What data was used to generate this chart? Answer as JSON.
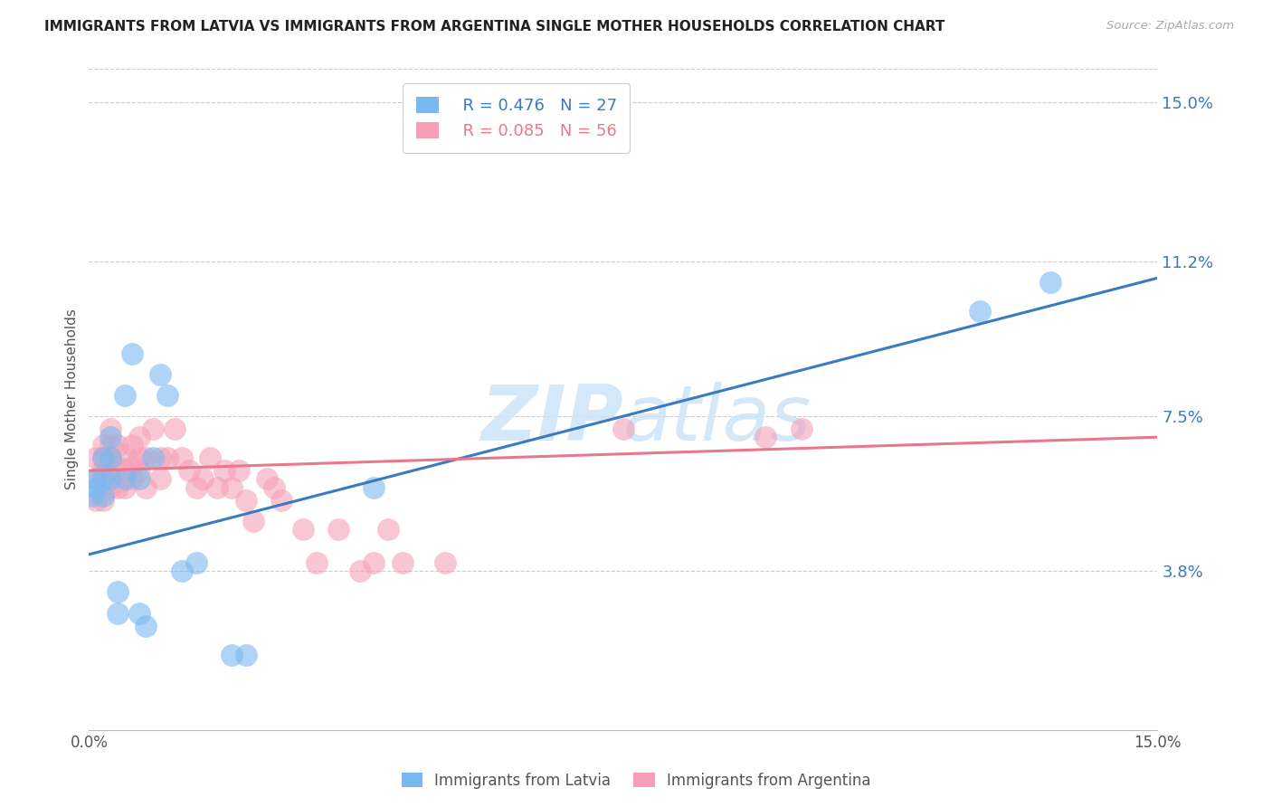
{
  "title": "IMMIGRANTS FROM LATVIA VS IMMIGRANTS FROM ARGENTINA SINGLE MOTHER HOUSEHOLDS CORRELATION CHART",
  "source": "Source: ZipAtlas.com",
  "ylabel": "Single Mother Households",
  "ytick_labels": [
    "15.0%",
    "11.2%",
    "7.5%",
    "3.8%"
  ],
  "ytick_values": [
    0.15,
    0.112,
    0.075,
    0.038
  ],
  "xmin": 0.0,
  "xmax": 0.15,
  "ymin": 0.0,
  "ymax": 0.158,
  "legend1_r": "0.476",
  "legend1_n": "27",
  "legend2_r": "0.085",
  "legend2_n": "56",
  "blue_color": "#7ab8f0",
  "pink_color": "#f5a0b8",
  "line_blue": "#3a7abf",
  "line_pink": "#e8788a",
  "watermark_color": "#cce4f7",
  "latvia_x": [
    0.0005,
    0.001,
    0.001,
    0.002,
    0.002,
    0.002,
    0.003,
    0.003,
    0.003,
    0.004,
    0.004,
    0.005,
    0.005,
    0.006,
    0.007,
    0.007,
    0.008,
    0.009,
    0.01,
    0.011,
    0.013,
    0.015,
    0.02,
    0.022,
    0.04,
    0.125,
    0.135
  ],
  "latvia_y": [
    0.056,
    0.058,
    0.06,
    0.056,
    0.06,
    0.065,
    0.06,
    0.065,
    0.07,
    0.028,
    0.033,
    0.06,
    0.08,
    0.09,
    0.028,
    0.06,
    0.025,
    0.065,
    0.085,
    0.08,
    0.038,
    0.04,
    0.018,
    0.018,
    0.058,
    0.1,
    0.107
  ],
  "argentina_x": [
    0.001,
    0.001,
    0.001,
    0.002,
    0.002,
    0.002,
    0.002,
    0.003,
    0.003,
    0.003,
    0.003,
    0.003,
    0.004,
    0.004,
    0.004,
    0.005,
    0.005,
    0.005,
    0.006,
    0.006,
    0.006,
    0.007,
    0.007,
    0.007,
    0.008,
    0.008,
    0.009,
    0.01,
    0.01,
    0.011,
    0.012,
    0.013,
    0.014,
    0.015,
    0.016,
    0.017,
    0.018,
    0.019,
    0.02,
    0.021,
    0.022,
    0.023,
    0.025,
    0.026,
    0.027,
    0.03,
    0.032,
    0.035,
    0.038,
    0.04,
    0.042,
    0.044,
    0.05,
    0.075,
    0.095,
    0.1
  ],
  "argentina_y": [
    0.055,
    0.06,
    0.065,
    0.055,
    0.062,
    0.065,
    0.068,
    0.058,
    0.062,
    0.065,
    0.068,
    0.072,
    0.058,
    0.063,
    0.068,
    0.058,
    0.062,
    0.066,
    0.06,
    0.063,
    0.068,
    0.062,
    0.065,
    0.07,
    0.058,
    0.065,
    0.072,
    0.06,
    0.065,
    0.065,
    0.072,
    0.065,
    0.062,
    0.058,
    0.06,
    0.065,
    0.058,
    0.062,
    0.058,
    0.062,
    0.055,
    0.05,
    0.06,
    0.058,
    0.055,
    0.048,
    0.04,
    0.048,
    0.038,
    0.04,
    0.048,
    0.04,
    0.04,
    0.072,
    0.07,
    0.072
  ],
  "blue_line_x0": 0.0,
  "blue_line_y0": 0.042,
  "blue_line_x1": 0.15,
  "blue_line_y1": 0.108,
  "pink_line_x0": 0.0,
  "pink_line_y0": 0.062,
  "pink_line_x1": 0.15,
  "pink_line_y1": 0.07
}
